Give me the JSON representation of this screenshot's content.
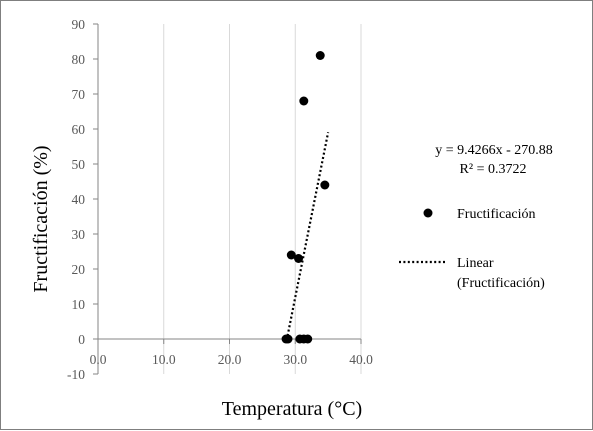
{
  "chart_data": {
    "type": "scatter",
    "xlabel": "Temperatura (°C)",
    "ylabel": "Fructificación (%)",
    "xlim": [
      0,
      40
    ],
    "ylim": [
      -10,
      90
    ],
    "x_ticks": [
      "0.0",
      "10.0",
      "20.0",
      "30.0",
      "40.0"
    ],
    "y_ticks": [
      "-10",
      "0",
      "10",
      "20",
      "30",
      "40",
      "50",
      "60",
      "70",
      "80",
      "90"
    ],
    "grid": "vertical",
    "legend_position": "right",
    "series": [
      {
        "name": "Fructificación",
        "color": "#000000",
        "points": [
          {
            "x": 28.6,
            "y": 0
          },
          {
            "x": 28.9,
            "y": 0
          },
          {
            "x": 29.4,
            "y": 24
          },
          {
            "x": 30.5,
            "y": 23
          },
          {
            "x": 30.7,
            "y": 0
          },
          {
            "x": 31.3,
            "y": 0
          },
          {
            "x": 31.3,
            "y": 68
          },
          {
            "x": 31.9,
            "y": 0
          },
          {
            "x": 33.8,
            "y": 81
          },
          {
            "x": 34.5,
            "y": 44
          }
        ]
      }
    ],
    "trendline": {
      "name": "Linear (Fructificación)",
      "legend_lines": [
        "Linear",
        "(Fructificación)"
      ],
      "style": "dotted",
      "slope": 9.4266,
      "intercept": -270.88,
      "x_range": [
        28.7,
        35.0
      ],
      "equation": "y = 9.4266x - 270.88",
      "r_squared": "R² = 0.3722"
    }
  }
}
